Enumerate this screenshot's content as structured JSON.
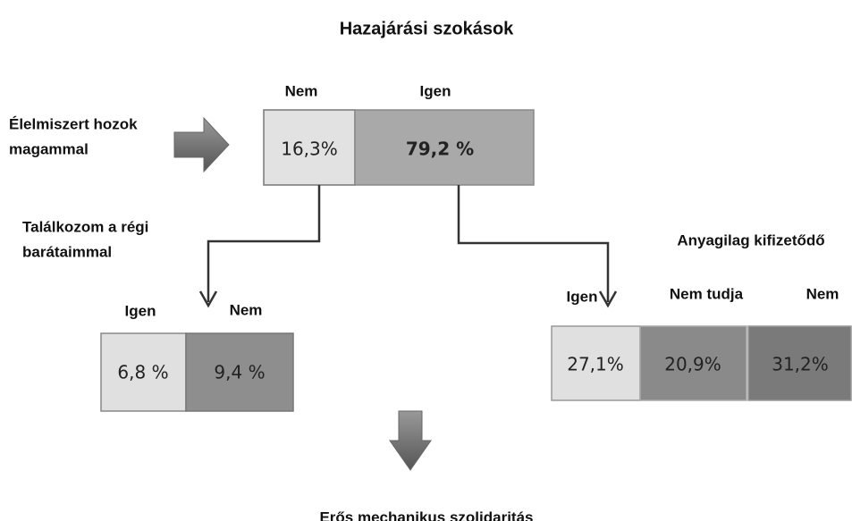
{
  "title": "Hazajárási szokások",
  "top": {
    "question": [
      "Élelmiszert hozok",
      "magammal"
    ],
    "options": [
      {
        "label": "Nem",
        "value": "16,3%"
      },
      {
        "label": "Igen",
        "value": "79,2 %"
      }
    ]
  },
  "left_branch": {
    "question": [
      "Találkozom a régi",
      "barátaimmal"
    ],
    "options": [
      {
        "label": "Igen",
        "value": "6,8 %"
      },
      {
        "label": "Nem",
        "value": "9,4 %"
      }
    ]
  },
  "right_branch": {
    "question": "Anyagilag kifizetődő",
    "options": [
      {
        "label": "Igen",
        "value": "27,1%"
      },
      {
        "label": "Nem tudja",
        "value": "20,9%"
      },
      {
        "label": "Nem",
        "value": "31,2%"
      }
    ]
  },
  "conclusion": "Erős mechanikus szolidaritás"
}
